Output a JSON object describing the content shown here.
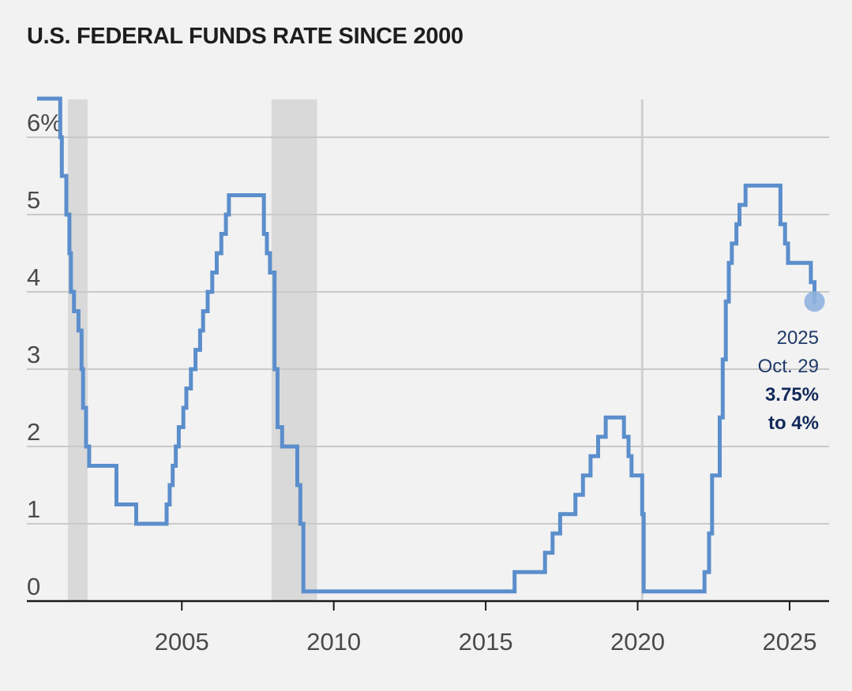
{
  "chart_data": {
    "type": "line",
    "title": "U.S. FEDERAL FUNDS RATE SINCE 2000",
    "xlabel": "",
    "ylabel": "",
    "x_ticks": [
      {
        "value": 2005,
        "label": "2005"
      },
      {
        "value": 2010,
        "label": "2010"
      },
      {
        "value": 2015,
        "label": "2015"
      },
      {
        "value": 2020,
        "label": "2020"
      },
      {
        "value": 2025,
        "label": "2025"
      }
    ],
    "y_ticks": [
      {
        "value": 0,
        "label": "0"
      },
      {
        "value": 1,
        "label": "1"
      },
      {
        "value": 2,
        "label": "2"
      },
      {
        "value": 3,
        "label": "3"
      },
      {
        "value": 4,
        "label": "4"
      },
      {
        "value": 5,
        "label": "5"
      },
      {
        "value": 6,
        "label": "6%"
      }
    ],
    "xlim": [
      1999.9,
      2026.3
    ],
    "ylim": [
      0,
      6.5
    ],
    "grid": true,
    "recession_bands": [
      [
        2001.25,
        2001.9
      ],
      [
        2007.95,
        2009.45
      ]
    ],
    "reference_line_x": 2020.15,
    "colors": {
      "line": "#5b8ecc",
      "marker": "#8fb2de",
      "recession": "#d9d9d9",
      "grid": "#c9c9c9",
      "annotation": "#1f3a68"
    },
    "series": [
      {
        "values": [
          [
            2000.3,
            6.5
          ],
          [
            2000.9,
            6.5
          ],
          [
            2001.0,
            6.0
          ],
          [
            2001.05,
            5.5
          ],
          [
            2001.2,
            5.0
          ],
          [
            2001.3,
            4.5
          ],
          [
            2001.35,
            4.0
          ],
          [
            2001.45,
            3.75
          ],
          [
            2001.6,
            3.5
          ],
          [
            2001.7,
            3.0
          ],
          [
            2001.75,
            2.5
          ],
          [
            2001.85,
            2.0
          ],
          [
            2001.95,
            1.75
          ],
          [
            2002.85,
            1.25
          ],
          [
            2003.5,
            1.0
          ],
          [
            2004.5,
            1.25
          ],
          [
            2004.6,
            1.5
          ],
          [
            2004.7,
            1.75
          ],
          [
            2004.8,
            2.0
          ],
          [
            2004.9,
            2.25
          ],
          [
            2005.05,
            2.5
          ],
          [
            2005.15,
            2.75
          ],
          [
            2005.3,
            3.0
          ],
          [
            2005.45,
            3.25
          ],
          [
            2005.6,
            3.5
          ],
          [
            2005.7,
            3.75
          ],
          [
            2005.85,
            4.0
          ],
          [
            2006.0,
            4.25
          ],
          [
            2006.15,
            4.5
          ],
          [
            2006.3,
            4.75
          ],
          [
            2006.45,
            5.0
          ],
          [
            2006.55,
            5.25
          ],
          [
            2007.7,
            4.75
          ],
          [
            2007.8,
            4.5
          ],
          [
            2007.9,
            4.25
          ],
          [
            2008.05,
            3.0
          ],
          [
            2008.15,
            2.25
          ],
          [
            2008.3,
            2.0
          ],
          [
            2008.8,
            1.5
          ],
          [
            2008.9,
            1.0
          ],
          [
            2009.0,
            0.125
          ],
          [
            2015.95,
            0.375
          ],
          [
            2016.95,
            0.625
          ],
          [
            2017.2,
            0.875
          ],
          [
            2017.45,
            1.125
          ],
          [
            2017.95,
            1.375
          ],
          [
            2018.2,
            1.625
          ],
          [
            2018.45,
            1.875
          ],
          [
            2018.7,
            2.125
          ],
          [
            2018.95,
            2.375
          ],
          [
            2019.55,
            2.125
          ],
          [
            2019.7,
            1.875
          ],
          [
            2019.8,
            1.625
          ],
          [
            2020.15,
            1.125
          ],
          [
            2020.2,
            0.125
          ],
          [
            2022.2,
            0.375
          ],
          [
            2022.35,
            0.875
          ],
          [
            2022.45,
            1.625
          ],
          [
            2022.7,
            2.375
          ],
          [
            2022.8,
            3.125
          ],
          [
            2022.9,
            3.875
          ],
          [
            2023.0,
            4.375
          ],
          [
            2023.1,
            4.625
          ],
          [
            2023.25,
            4.875
          ],
          [
            2023.35,
            5.125
          ],
          [
            2023.55,
            5.375
          ],
          [
            2024.7,
            4.875
          ],
          [
            2024.85,
            4.625
          ],
          [
            2024.95,
            4.375
          ],
          [
            2025.7,
            4.125
          ],
          [
            2025.82,
            3.875
          ]
        ]
      }
    ],
    "latest_point": {
      "x": 2025.82,
      "y": 3.875
    },
    "annotation": {
      "line1": "2025",
      "line2": "Oct. 29",
      "line3": "3.75%",
      "line4": "to 4%"
    }
  }
}
